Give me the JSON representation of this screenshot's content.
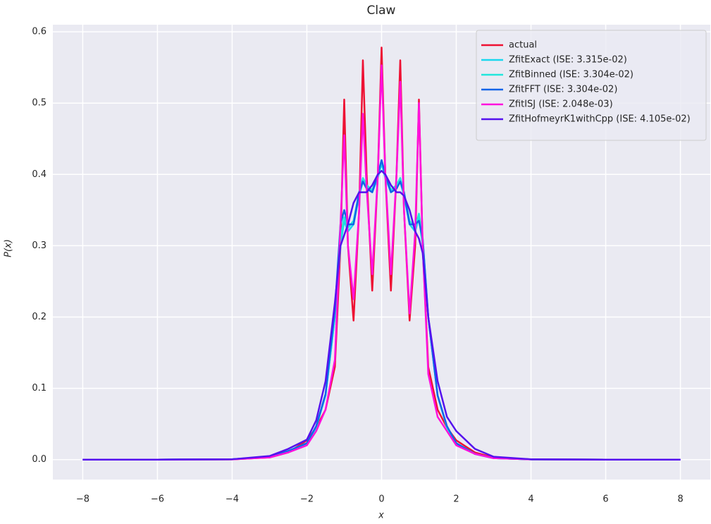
{
  "chart_data": {
    "type": "line",
    "title": "Claw",
    "xlabel": "x",
    "ylabel": "P(x)",
    "x": [
      -8,
      -6,
      -4,
      -3,
      -2.5,
      -2,
      -1.75,
      -1.5,
      -1.25,
      -1.1,
      -1,
      -0.9,
      -0.75,
      -0.6,
      -0.5,
      -0.4,
      -0.25,
      -0.1,
      0,
      0.1,
      0.25,
      0.4,
      0.5,
      0.6,
      0.75,
      0.9,
      1,
      1.1,
      1.25,
      1.5,
      1.75,
      2,
      2.5,
      3,
      4,
      6,
      8
    ],
    "series": [
      {
        "name": "actual",
        "color": "#ee1133",
        "values": [
          0,
          0,
          0.0003,
          0.003,
          0.01,
          0.027,
          0.045,
          0.07,
          0.13,
          0.3,
          0.505,
          0.3,
          0.195,
          0.35,
          0.56,
          0.4,
          0.237,
          0.4,
          0.578,
          0.4,
          0.237,
          0.4,
          0.56,
          0.35,
          0.195,
          0.3,
          0.505,
          0.3,
          0.13,
          0.07,
          0.045,
          0.027,
          0.01,
          0.003,
          0.0003,
          0,
          0
        ]
      },
      {
        "name": "ZfitExact (ISE: 3.315e-02)",
        "color": "#1ad7ee",
        "values": [
          0,
          0,
          0.0005,
          0.004,
          0.012,
          0.022,
          0.045,
          0.09,
          0.2,
          0.3,
          0.335,
          0.32,
          0.33,
          0.37,
          0.39,
          0.385,
          0.375,
          0.395,
          0.415,
          0.395,
          0.375,
          0.385,
          0.39,
          0.37,
          0.33,
          0.32,
          0.34,
          0.3,
          0.2,
          0.09,
          0.045,
          0.022,
          0.008,
          0.002,
          0.0003,
          0,
          0
        ]
      },
      {
        "name": "ZfitBinned (ISE: 3.304e-02)",
        "color": "#22e6dc",
        "values": [
          0,
          0,
          0.0005,
          0.004,
          0.012,
          0.023,
          0.046,
          0.09,
          0.2,
          0.31,
          0.34,
          0.325,
          0.335,
          0.375,
          0.395,
          0.385,
          0.378,
          0.4,
          0.42,
          0.4,
          0.378,
          0.385,
          0.395,
          0.375,
          0.335,
          0.325,
          0.345,
          0.31,
          0.2,
          0.09,
          0.046,
          0.023,
          0.008,
          0.002,
          0.0003,
          0,
          0
        ]
      },
      {
        "name": "ZfitFFT (ISE: 3.304e-02)",
        "color": "#1165e8",
        "values": [
          0,
          0,
          0.0005,
          0.004,
          0.012,
          0.023,
          0.047,
          0.092,
          0.21,
          0.33,
          0.35,
          0.33,
          0.33,
          0.375,
          0.39,
          0.38,
          0.375,
          0.4,
          0.42,
          0.4,
          0.375,
          0.38,
          0.39,
          0.375,
          0.33,
          0.33,
          0.335,
          0.31,
          0.2,
          0.09,
          0.047,
          0.023,
          0.008,
          0.002,
          0.0003,
          0,
          0
        ]
      },
      {
        "name": "ZfitISJ (ISE: 2.048e-03)",
        "color": "#ff11dd",
        "values": [
          0,
          0,
          0.0003,
          0.003,
          0.01,
          0.02,
          0.04,
          0.07,
          0.14,
          0.33,
          0.455,
          0.3,
          0.225,
          0.35,
          0.485,
          0.38,
          0.26,
          0.4,
          0.553,
          0.4,
          0.26,
          0.4,
          0.53,
          0.35,
          0.205,
          0.32,
          0.5,
          0.3,
          0.12,
          0.06,
          0.04,
          0.02,
          0.008,
          0.002,
          0.0003,
          0,
          0
        ]
      },
      {
        "name": "ZfitHofmeyrK1withCpp (ISE: 4.105e-02)",
        "color": "#5511ee",
        "values": [
          0,
          0,
          0.0005,
          0.005,
          0.015,
          0.028,
          0.055,
          0.11,
          0.22,
          0.3,
          0.315,
          0.33,
          0.36,
          0.375,
          0.375,
          0.375,
          0.385,
          0.4,
          0.405,
          0.4,
          0.385,
          0.375,
          0.375,
          0.37,
          0.35,
          0.32,
          0.31,
          0.29,
          0.2,
          0.11,
          0.06,
          0.04,
          0.015,
          0.004,
          0.0005,
          0,
          0
        ]
      }
    ],
    "xlim": [
      -8.8,
      8.8
    ],
    "ylim": [
      -0.028,
      0.61
    ],
    "xticks": [
      {
        "value": -8,
        "label": "−8"
      },
      {
        "value": -6,
        "label": "−6"
      },
      {
        "value": -4,
        "label": "−4"
      },
      {
        "value": -2,
        "label": "−2"
      },
      0,
      2,
      4,
      6,
      8
    ],
    "yticks": [
      {
        "value": 0,
        "label": "0.0"
      },
      0.1,
      0.2,
      0.3,
      0.4,
      0.5,
      0.6
    ],
    "grid": true,
    "legend": "upper right"
  }
}
